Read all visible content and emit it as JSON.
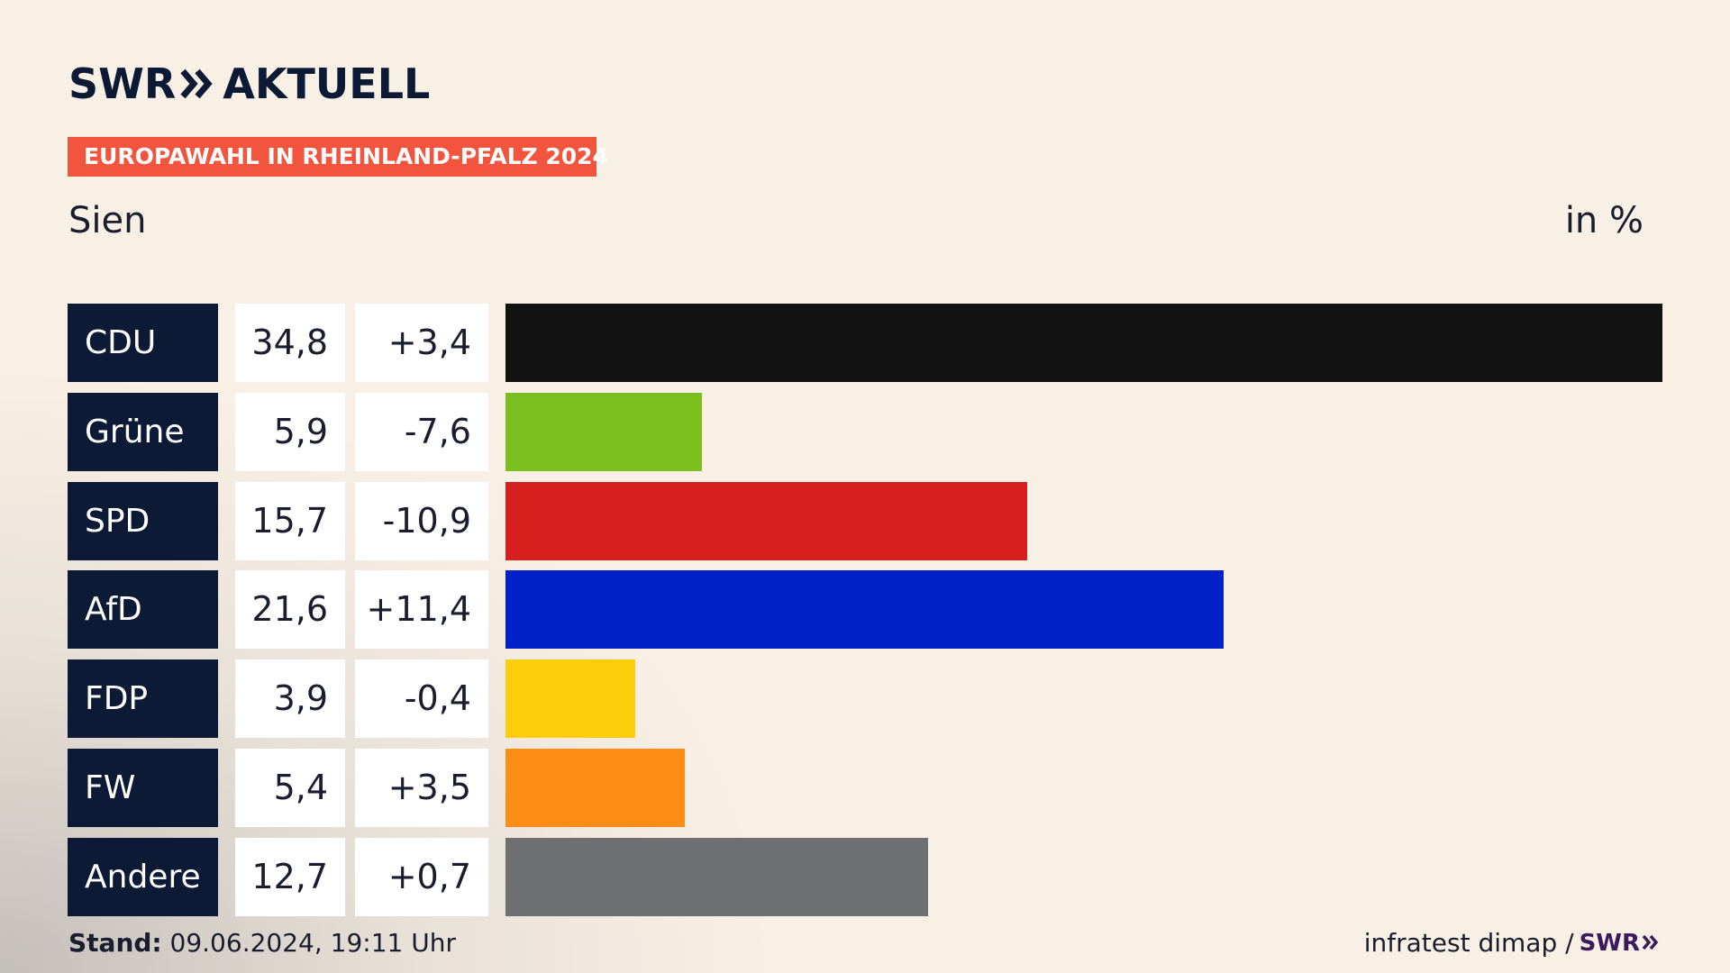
{
  "header": {
    "logo": "SWR» AKTUELL",
    "logo_word": "AKTUELL",
    "badge": "EUROPAWAHL IN RHEINLAND-PFALZ 2024",
    "subtitle": "Sien",
    "unit": "in %"
  },
  "chart_data": {
    "type": "bar",
    "orientation": "horizontal",
    "title": "EUROPAWAHL IN RHEINLAND-PFALZ 2024",
    "subtitle": "Sien",
    "unit": "in %",
    "categories": [
      "CDU",
      "Grüne",
      "SPD",
      "AfD",
      "FDP",
      "FW",
      "Andere"
    ],
    "values": [
      34.8,
      5.9,
      15.7,
      21.6,
      3.9,
      5.4,
      12.7
    ],
    "value_labels": [
      "34,8",
      "5,9",
      "15,7",
      "21,6",
      "3,9",
      "5,4",
      "12,7"
    ],
    "changes": [
      3.4,
      -7.6,
      -10.9,
      11.4,
      -0.4,
      3.5,
      0.7
    ],
    "change_labels": [
      "+3,4",
      "-7,6",
      "-10,9",
      "+11,4",
      "-0,4",
      "+3,5",
      "+0,7"
    ],
    "colors": [
      "#121212",
      "#7abf1d",
      "#d71f1f",
      "#0021c8",
      "#fecd0b",
      "#fd8d17",
      "#6e6f71"
    ],
    "xlim": [
      0,
      34.8
    ],
    "grid": false,
    "legend": "none"
  },
  "footer": {
    "stand_label": "Stand:",
    "stand_value": "09.06.2024, 19:11 Uhr",
    "source": "infratest dimap /",
    "source_logo": "SWR»"
  }
}
